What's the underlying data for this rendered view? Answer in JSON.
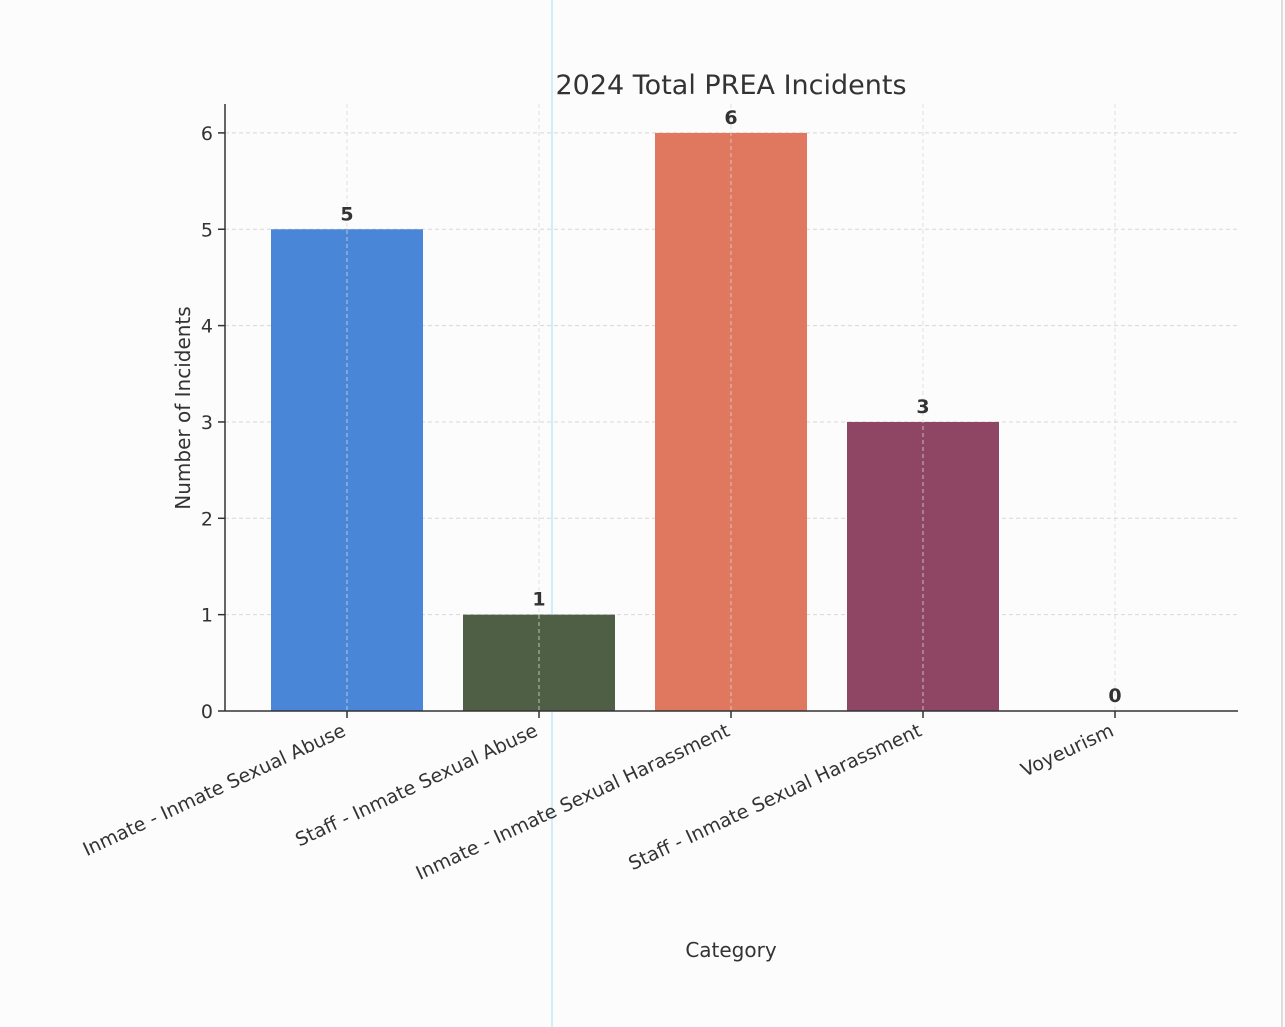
{
  "chart_data": {
    "type": "bar",
    "title": "2024 Total PREA Incidents",
    "xlabel": "Category",
    "ylabel": "Number of Incidents",
    "categories": [
      "Inmate - Inmate Sexual Abuse",
      "Staff - Inmate Sexual Abuse",
      "Inmate - Inmate Sexual Harassment",
      "Staff - Inmate Sexual Harassment",
      "Voyeurism"
    ],
    "values": [
      5,
      1,
      6,
      3,
      0
    ],
    "data_labels": [
      "5",
      "1",
      "6",
      "3",
      "0"
    ],
    "colors": [
      "#4a86d8",
      "#4e5f45",
      "#e07860",
      "#8e4664",
      "#b0b0b0"
    ],
    "ylim": [
      0,
      6.3
    ],
    "yticks": [
      0,
      1,
      2,
      3,
      4,
      5,
      6
    ],
    "grid": true
  }
}
